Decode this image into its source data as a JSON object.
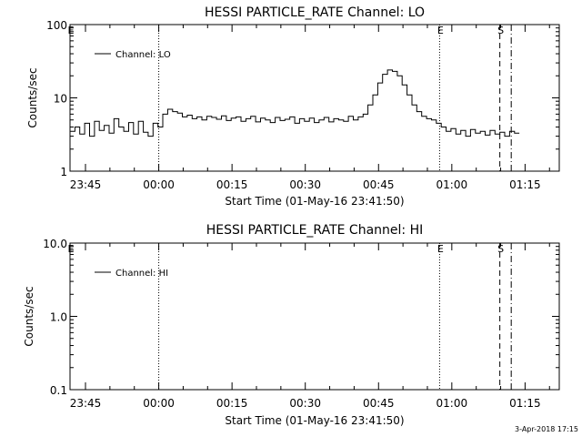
{
  "timestamp": "3-Apr-2018 17:15",
  "chart_data": [
    {
      "type": "line",
      "title": "HESSI PARTICLE_RATE Channel: LO",
      "xlabel": "Start Time (01-May-16 23:41:50)",
      "ylabel": "Counts/sec",
      "yscale": "log",
      "xlim": [
        "23:41:50",
        "01:22:00"
      ],
      "ylim": [
        1,
        100
      ],
      "xticks": [
        "23:45",
        "00:00",
        "00:15",
        "00:30",
        "00:45",
        "01:00",
        "01:15"
      ],
      "yticks": [
        "1",
        "10",
        "100"
      ],
      "legend": {
        "position": "top-left",
        "entries": [
          "Channel: LO"
        ]
      },
      "markers": [
        {
          "label": "E",
          "time": "23:41:50",
          "style": "none"
        },
        {
          "label": "",
          "time": "00:00:00",
          "style": "dotted"
        },
        {
          "label": "E",
          "time": "00:57:30",
          "style": "dotted"
        },
        {
          "label": "S",
          "time": "01:09:50",
          "style": "dashed"
        },
        {
          "label": "",
          "time": "01:12:10",
          "style": "dash-dot"
        }
      ],
      "series": [
        {
          "name": "Channel: LO",
          "x": [
            "23:41:50",
            "23:42:50",
            "23:43:50",
            "23:44:50",
            "23:45:50",
            "23:46:50",
            "23:47:50",
            "23:48:50",
            "23:49:50",
            "23:50:50",
            "23:51:50",
            "23:52:50",
            "23:53:50",
            "23:54:50",
            "23:55:50",
            "23:56:50",
            "23:57:50",
            "23:58:50",
            "23:59:50",
            "00:00:50",
            "00:01:50",
            "00:02:50",
            "00:03:50",
            "00:04:50",
            "00:05:50",
            "00:06:50",
            "00:07:50",
            "00:08:50",
            "00:09:50",
            "00:10:50",
            "00:11:50",
            "00:12:50",
            "00:13:50",
            "00:14:50",
            "00:15:50",
            "00:16:50",
            "00:17:50",
            "00:18:50",
            "00:19:50",
            "00:20:50",
            "00:21:50",
            "00:22:50",
            "00:23:50",
            "00:24:50",
            "00:25:50",
            "00:26:50",
            "00:27:50",
            "00:28:50",
            "00:29:50",
            "00:30:50",
            "00:31:50",
            "00:32:50",
            "00:33:50",
            "00:34:50",
            "00:35:50",
            "00:36:50",
            "00:37:50",
            "00:38:50",
            "00:39:50",
            "00:40:50",
            "00:41:50",
            "00:42:50",
            "00:43:50",
            "00:44:50",
            "00:45:50",
            "00:46:50",
            "00:47:50",
            "00:48:50",
            "00:49:50",
            "00:50:50",
            "00:51:50",
            "00:52:50",
            "00:53:50",
            "00:54:50",
            "00:55:50",
            "00:56:50",
            "00:57:50",
            "00:58:50",
            "00:59:50",
            "01:00:50",
            "01:01:50",
            "01:02:50",
            "01:03:50",
            "01:04:50",
            "01:05:50",
            "01:06:50",
            "01:07:50",
            "01:08:50",
            "01:09:50",
            "01:10:50",
            "01:11:50",
            "01:12:50"
          ],
          "values": [
            3.5,
            4.0,
            3.2,
            4.5,
            3.0,
            4.8,
            3.6,
            4.2,
            3.3,
            5.2,
            4.0,
            3.5,
            4.6,
            3.2,
            4.8,
            3.4,
            3.0,
            4.5,
            4.0,
            6.0,
            7.0,
            6.5,
            6.2,
            5.5,
            5.8,
            5.2,
            5.5,
            5.0,
            5.6,
            5.4,
            5.1,
            5.7,
            4.9,
            5.3,
            5.5,
            4.8,
            5.2,
            5.6,
            4.7,
            5.3,
            5.0,
            4.6,
            5.4,
            4.9,
            5.1,
            5.5,
            4.5,
            5.2,
            4.8,
            5.3,
            4.6,
            5.0,
            5.4,
            4.7,
            5.2,
            5.0,
            4.8,
            5.6,
            5.0,
            5.5,
            6.0,
            8.0,
            11.0,
            16.0,
            21.0,
            24.0,
            23.0,
            20.0,
            15.0,
            11.0,
            8.0,
            6.5,
            5.6,
            5.2,
            5.0,
            4.5,
            4.0,
            3.5,
            3.8,
            3.2,
            3.6,
            3.0,
            3.7,
            3.3,
            3.5,
            3.1,
            3.6,
            3.2,
            3.4,
            3.0,
            3.5,
            3.3
          ]
        }
      ]
    },
    {
      "type": "line",
      "title": "HESSI PARTICLE_RATE Channel: HI",
      "xlabel": "Start Time (01-May-16 23:41:50)",
      "ylabel": "Counts/sec",
      "yscale": "log",
      "xlim": [
        "23:41:50",
        "01:22:00"
      ],
      "ylim": [
        0.1,
        10
      ],
      "xticks": [
        "23:45",
        "00:00",
        "00:15",
        "00:30",
        "00:45",
        "01:00",
        "01:15"
      ],
      "yticks": [
        "0.1",
        "1.0",
        "10.0"
      ],
      "legend": {
        "position": "top-left",
        "entries": [
          "Channel: HI"
        ]
      },
      "markers": [
        {
          "label": "E",
          "time": "23:41:50",
          "style": "none"
        },
        {
          "label": "",
          "time": "00:00:00",
          "style": "dotted"
        },
        {
          "label": "E",
          "time": "00:57:30",
          "style": "dotted"
        },
        {
          "label": "S",
          "time": "01:09:50",
          "style": "dashed"
        },
        {
          "label": "",
          "time": "01:12:10",
          "style": "dash-dot"
        }
      ],
      "series": [
        {
          "name": "Channel: HI",
          "x": [],
          "values": []
        }
      ]
    }
  ]
}
